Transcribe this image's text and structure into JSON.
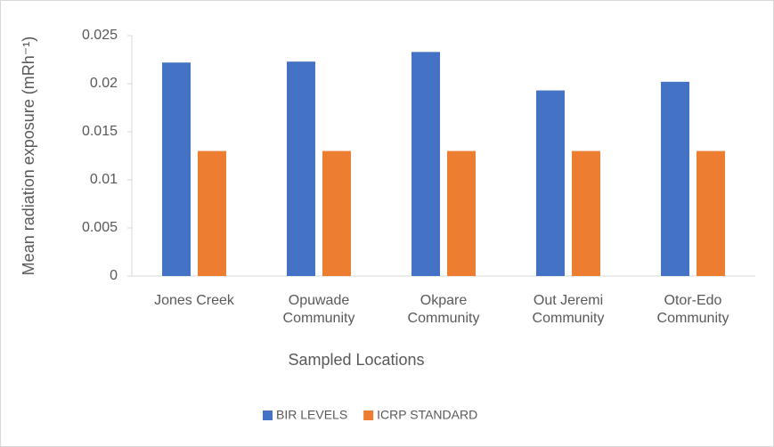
{
  "chart_data": {
    "type": "bar",
    "x_label": "Sampled Locations",
    "y_label": "Mean radiation exposure (mRh⁻¹)",
    "categories": [
      "Jones Creek",
      "Opuwade Community",
      "Okpare Community",
      "Out Jeremi Community",
      "Otor-Edo Community"
    ],
    "series": [
      {
        "name": "BIR LEVELS",
        "color": "#4472c4",
        "values": [
          0.0222,
          0.0223,
          0.0233,
          0.0193,
          0.0202
        ]
      },
      {
        "name": "ICRP STANDARD",
        "color": "#ed7d31",
        "values": [
          0.013,
          0.013,
          0.013,
          0.013,
          0.013
        ]
      }
    ],
    "ylim": [
      0,
      0.025
    ],
    "yticks": [
      0,
      0.005,
      0.01,
      0.015,
      0.02,
      0.025
    ],
    "grid": false,
    "legend": "bottom"
  }
}
